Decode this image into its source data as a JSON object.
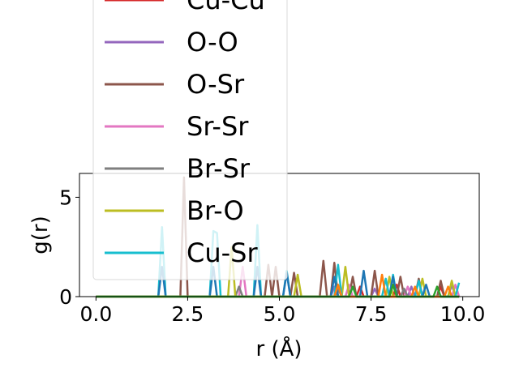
{
  "chart_data": {
    "type": "line",
    "title": "",
    "xlabel": "r (Å)",
    "ylabel": "g(r)",
    "xlim": [
      -0.45,
      10.45
    ],
    "ylim": [
      0,
      6.2
    ],
    "xticks": [
      0.0,
      2.5,
      5.0,
      7.5,
      10.0
    ],
    "xtick_labels": [
      "0.0",
      "2.5",
      "5.0",
      "7.5",
      "10.0"
    ],
    "yticks": [
      0,
      5
    ],
    "ytick_labels": [
      "0",
      "5"
    ],
    "grid": false,
    "legend_placement": "upper-left, overflowing above the axes",
    "series": [
      {
        "name": "Cu-Cu",
        "color": "#d62728",
        "peaks": [
          [
            7.2,
            0.5
          ],
          [
            8.2,
            0.6
          ],
          [
            9.4,
            0.5
          ]
        ]
      },
      {
        "name": "O-O",
        "color": "#9467bd",
        "peaks": [
          [
            6.5,
            0.5
          ],
          [
            7.6,
            0.4
          ],
          [
            8.6,
            0.5
          ],
          [
            9.7,
            0.6
          ]
        ]
      },
      {
        "name": "O-Sr",
        "color": "#8c564b",
        "peaks": [
          [
            2.4,
            6.0
          ],
          [
            4.7,
            1.6
          ],
          [
            4.85,
            1.5
          ],
          [
            5.4,
            1.2
          ],
          [
            6.2,
            1.8
          ],
          [
            6.5,
            1.7
          ],
          [
            7.0,
            1.0
          ],
          [
            7.6,
            1.3
          ],
          [
            8.3,
            1.0
          ],
          [
            8.8,
            0.9
          ],
          [
            9.4,
            0.8
          ]
        ]
      },
      {
        "name": "Sr-Sr",
        "color": "#e377c2",
        "peaks": [
          [
            4.0,
            1.5
          ],
          [
            6.9,
            0.6
          ],
          [
            8.5,
            0.5
          ],
          [
            9.8,
            0.6
          ]
        ]
      },
      {
        "name": "Br-Sr",
        "color": "#7f7f7f",
        "peaks": [
          [
            3.9,
            0.5
          ],
          [
            6.6,
            0.4
          ],
          [
            8.4,
            0.4
          ]
        ]
      },
      {
        "name": "Br-O",
        "color": "#bcbd22",
        "peaks": [
          [
            3.7,
            2.5
          ],
          [
            5.5,
            1.1
          ],
          [
            6.8,
            1.5
          ],
          [
            8.0,
            1.0
          ],
          [
            8.9,
            0.9
          ],
          [
            9.7,
            0.8
          ]
        ]
      },
      {
        "name": "Cu-Sr",
        "color": "#17becf",
        "peaks": [
          [
            1.8,
            3.5
          ],
          [
            3.25,
            3.3
          ],
          [
            3.35,
            3.2
          ],
          [
            4.4,
            3.6
          ],
          [
            5.2,
            1.3
          ],
          [
            6.6,
            1.6
          ],
          [
            7.9,
            0.9
          ],
          [
            8.1,
            1.1
          ],
          [
            8.8,
            0.8
          ],
          [
            9.9,
            0.7
          ]
        ]
      },
      {
        "name": "",
        "color": "#1f77b4",
        "peaks": [
          [
            1.8,
            1.5
          ],
          [
            3.25,
            1.5
          ],
          [
            4.4,
            1.5
          ],
          [
            5.2,
            1.2
          ],
          [
            6.5,
            1.0
          ],
          [
            7.3,
            1.3
          ],
          [
            8.1,
            1.0
          ],
          [
            9.0,
            0.6
          ]
        ]
      },
      {
        "name": "",
        "color": "#ff7f0e",
        "peaks": [
          [
            6.6,
            0.6
          ],
          [
            7.8,
            1.1
          ],
          [
            8.7,
            0.5
          ],
          [
            9.6,
            0.5
          ]
        ]
      },
      {
        "name": "",
        "color": "#2ca02c",
        "peaks": [
          [
            7.0,
            0.5
          ],
          [
            8.1,
            0.6
          ],
          [
            9.3,
            0.5
          ]
        ]
      }
    ]
  }
}
